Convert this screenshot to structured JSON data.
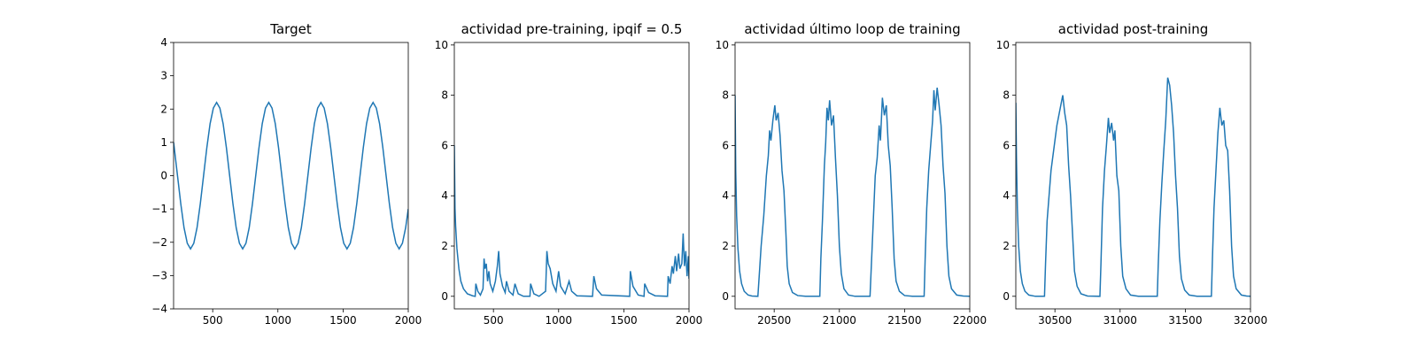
{
  "chart_data": [
    {
      "type": "line",
      "title": "Target",
      "color": "#1f77b4",
      "xlim": [
        200,
        2000
      ],
      "xticks": [
        500,
        1000,
        1500,
        2000
      ],
      "ylim": [
        -4,
        4
      ],
      "yticks": [
        {
          "value": -4,
          "label": "−4"
        },
        {
          "value": -3,
          "label": "−3"
        },
        {
          "value": -2,
          "label": "−2"
        },
        {
          "value": -1,
          "label": "−1"
        },
        0,
        1,
        2,
        3,
        4
      ],
      "x": [
        200,
        205,
        230,
        255,
        280,
        305,
        330,
        355,
        380,
        405,
        430,
        455,
        480,
        505,
        530,
        555,
        580,
        605,
        630,
        655,
        680,
        705,
        730,
        755,
        780,
        805,
        830,
        855,
        880,
        905,
        930,
        955,
        980,
        1005,
        1030,
        1055,
        1080,
        1105,
        1130,
        1155,
        1180,
        1205,
        1230,
        1255,
        1280,
        1305,
        1330,
        1355,
        1380,
        1405,
        1430,
        1455,
        1480,
        1505,
        1530,
        1555,
        1580,
        1605,
        1630,
        1655,
        1680,
        1705,
        1730,
        1755,
        1780,
        1805,
        1830,
        1855,
        1880,
        1905,
        1930,
        1955,
        1980,
        2000
      ],
      "values": [
        1.0,
        0.84,
        0,
        -0.84,
        -1.56,
        -2.03,
        -2.2,
        -2.03,
        -1.56,
        -0.84,
        0,
        0.84,
        1.56,
        2.03,
        2.2,
        2.03,
        1.56,
        0.84,
        0,
        -0.84,
        -1.56,
        -2.03,
        -2.2,
        -2.03,
        -1.56,
        -0.84,
        0,
        0.84,
        1.56,
        2.03,
        2.2,
        2.03,
        1.56,
        0.84,
        0,
        -0.84,
        -1.56,
        -2.03,
        -2.2,
        -2.03,
        -1.56,
        -0.84,
        0,
        0.84,
        1.56,
        2.03,
        2.2,
        2.03,
        1.56,
        0.84,
        0,
        -0.84,
        -1.56,
        -2.03,
        -2.2,
        -2.03,
        -1.56,
        -0.84,
        0,
        0.84,
        1.56,
        2.03,
        2.2,
        2.03,
        1.56,
        0.84,
        0,
        -0.84,
        -1.56,
        -2.03,
        -2.2,
        -2.03,
        -1.56,
        -1.0
      ]
    },
    {
      "type": "line",
      "title": "actividad pre-training, ipqif = 0.5",
      "color": "#1f77b4",
      "xlim": [
        200,
        2000
      ],
      "xticks": [
        500,
        1000,
        1500,
        2000
      ],
      "ylim": [
        -0.5,
        10.1
      ],
      "yticks": [
        0,
        2,
        4,
        6,
        8,
        10
      ],
      "x": [
        200,
        205,
        210,
        220,
        235,
        250,
        270,
        300,
        340,
        360,
        365,
        380,
        400,
        420,
        428,
        435,
        445,
        455,
        465,
        475,
        495,
        515,
        530,
        540,
        550,
        570,
        590,
        600,
        620,
        650,
        665,
        690,
        730,
        780,
        785,
        810,
        850,
        900,
        910,
        920,
        935,
        955,
        980,
        1000,
        1015,
        1050,
        1080,
        1100,
        1140,
        1260,
        1270,
        1290,
        1330,
        1545,
        1550,
        1570,
        1610,
        1655,
        1660,
        1690,
        1740,
        1835,
        1840,
        1855,
        1870,
        1880,
        1895,
        1905,
        1920,
        1930,
        1945,
        1955,
        1965,
        1975,
        1985,
        1995,
        2000
      ],
      "values": [
        6,
        3.5,
        2.8,
        1.9,
        1.1,
        0.6,
        0.3,
        0.1,
        0.02,
        0,
        0.5,
        0.2,
        0.05,
        0.3,
        1.5,
        1.1,
        1.3,
        0.6,
        1.0,
        0.5,
        0.2,
        0.6,
        1.2,
        1.8,
        0.9,
        0.4,
        0.15,
        0.6,
        0.2,
        0.05,
        0.5,
        0.1,
        0,
        0,
        0.5,
        0.1,
        0,
        0.2,
        1.8,
        1.3,
        1.1,
        0.5,
        0.2,
        1.0,
        0.4,
        0.1,
        0.6,
        0.2,
        0.02,
        0,
        0.8,
        0.3,
        0.05,
        0,
        1.0,
        0.4,
        0.05,
        0,
        0.5,
        0.15,
        0.02,
        0,
        0.8,
        0.5,
        1.2,
        0.9,
        1.6,
        1.0,
        1.7,
        1.1,
        1.3,
        2.5,
        1.2,
        1.8,
        0.8,
        1.6,
        0.7
      ]
    },
    {
      "type": "line",
      "title": "actividad último loop de training",
      "color": "#1f77b4",
      "xlim": [
        20200,
        22000
      ],
      "xticks": [
        20500,
        21000,
        21500,
        22000
      ],
      "ylim": [
        -0.5,
        10.1
      ],
      "yticks": [
        0,
        2,
        4,
        6,
        8,
        10
      ],
      "x": [
        20200,
        20205,
        20212,
        20222,
        20235,
        20250,
        20270,
        20300,
        20330,
        20375,
        20385,
        20400,
        20420,
        20440,
        20455,
        20465,
        20475,
        20490,
        20505,
        20515,
        20530,
        20545,
        20560,
        20575,
        20590,
        20600,
        20615,
        20640,
        20680,
        20740,
        20850,
        20858,
        20870,
        20885,
        20895,
        20905,
        20915,
        20925,
        20940,
        20955,
        20970,
        20985,
        21000,
        21015,
        21035,
        21070,
        21120,
        21235,
        21245,
        21260,
        21275,
        21290,
        21305,
        21315,
        21330,
        21345,
        21360,
        21375,
        21390,
        21405,
        21420,
        21435,
        21460,
        21500,
        21560,
        21650,
        21658,
        21670,
        21685,
        21700,
        21715,
        21725,
        21735,
        21750,
        21765,
        21780,
        21795,
        21810,
        21825,
        21840,
        21860,
        21900,
        21950,
        22000
      ],
      "values": [
        8,
        5,
        3.2,
        1.9,
        1.0,
        0.5,
        0.2,
        0.05,
        0.01,
        0,
        0.8,
        2.0,
        3.2,
        4.8,
        5.6,
        6.6,
        6.2,
        7.0,
        7.6,
        7.0,
        7.3,
        6.4,
        5.0,
        4.2,
        2.5,
        1.2,
        0.5,
        0.15,
        0.03,
        0,
        0,
        1.5,
        3.0,
        5.2,
        6.1,
        7.5,
        7.0,
        7.8,
        6.8,
        7.2,
        5.5,
        4.0,
        2.0,
        0.9,
        0.3,
        0.05,
        0,
        0,
        1.2,
        3.0,
        4.8,
        5.5,
        6.8,
        6.2,
        7.9,
        7.2,
        7.6,
        6.0,
        5.2,
        3.5,
        1.5,
        0.6,
        0.2,
        0.03,
        0,
        0,
        1.5,
        3.5,
        5.0,
        6.0,
        7.0,
        8.2,
        7.4,
        8.3,
        7.6,
        6.8,
        5.2,
        4.1,
        2.0,
        0.8,
        0.3,
        0.05,
        0.01,
        0
      ]
    },
    {
      "type": "line",
      "title": "actividad post-training",
      "color": "#1f77b4",
      "xlim": [
        30200,
        32000
      ],
      "xticks": [
        30500,
        31000,
        31500,
        32000
      ],
      "ylim": [
        -0.5,
        10.1
      ],
      "yticks": [
        0,
        2,
        4,
        6,
        8,
        10
      ],
      "x": [
        30200,
        30205,
        30212,
        30222,
        30235,
        30250,
        30270,
        30300,
        30350,
        30420,
        30428,
        30440,
        30455,
        30470,
        30485,
        30500,
        30515,
        30530,
        30545,
        30560,
        30575,
        30590,
        30605,
        30620,
        30635,
        30650,
        30670,
        30700,
        30750,
        30845,
        30853,
        30865,
        30880,
        30895,
        30910,
        30920,
        30935,
        30950,
        30960,
        30975,
        30990,
        31005,
        31020,
        31045,
        31080,
        31140,
        31285,
        31292,
        31305,
        31320,
        31335,
        31350,
        31365,
        31380,
        31395,
        31410,
        31425,
        31440,
        31455,
        31470,
        31495,
        31530,
        31590,
        31700,
        31708,
        31720,
        31735,
        31750,
        31765,
        31780,
        31795,
        31810,
        31825,
        31840,
        31855,
        31870,
        31890,
        31930,
        31970,
        32000
      ],
      "values": [
        7.7,
        5.5,
        3.5,
        2.0,
        1.0,
        0.5,
        0.2,
        0.05,
        0,
        0,
        1.3,
        3.0,
        4.0,
        5.0,
        5.6,
        6.2,
        6.8,
        7.2,
        7.6,
        8.0,
        7.3,
        6.8,
        5.2,
        4.0,
        2.5,
        1.0,
        0.4,
        0.1,
        0.01,
        0,
        1.3,
        3.5,
        5.0,
        6.0,
        7.1,
        6.5,
        6.9,
        6.2,
        6.6,
        4.8,
        4.2,
        2.0,
        0.8,
        0.3,
        0.05,
        0,
        0,
        1.2,
        3.0,
        4.5,
        5.8,
        7.0,
        8.7,
        8.4,
        7.6,
        6.5,
        4.8,
        3.5,
        1.6,
        0.7,
        0.25,
        0.05,
        0,
        0,
        1.5,
        3.5,
        5.0,
        6.5,
        7.5,
        6.8,
        7.0,
        6.0,
        5.8,
        4.2,
        2.0,
        0.8,
        0.3,
        0.05,
        0.01,
        0
      ]
    }
  ]
}
